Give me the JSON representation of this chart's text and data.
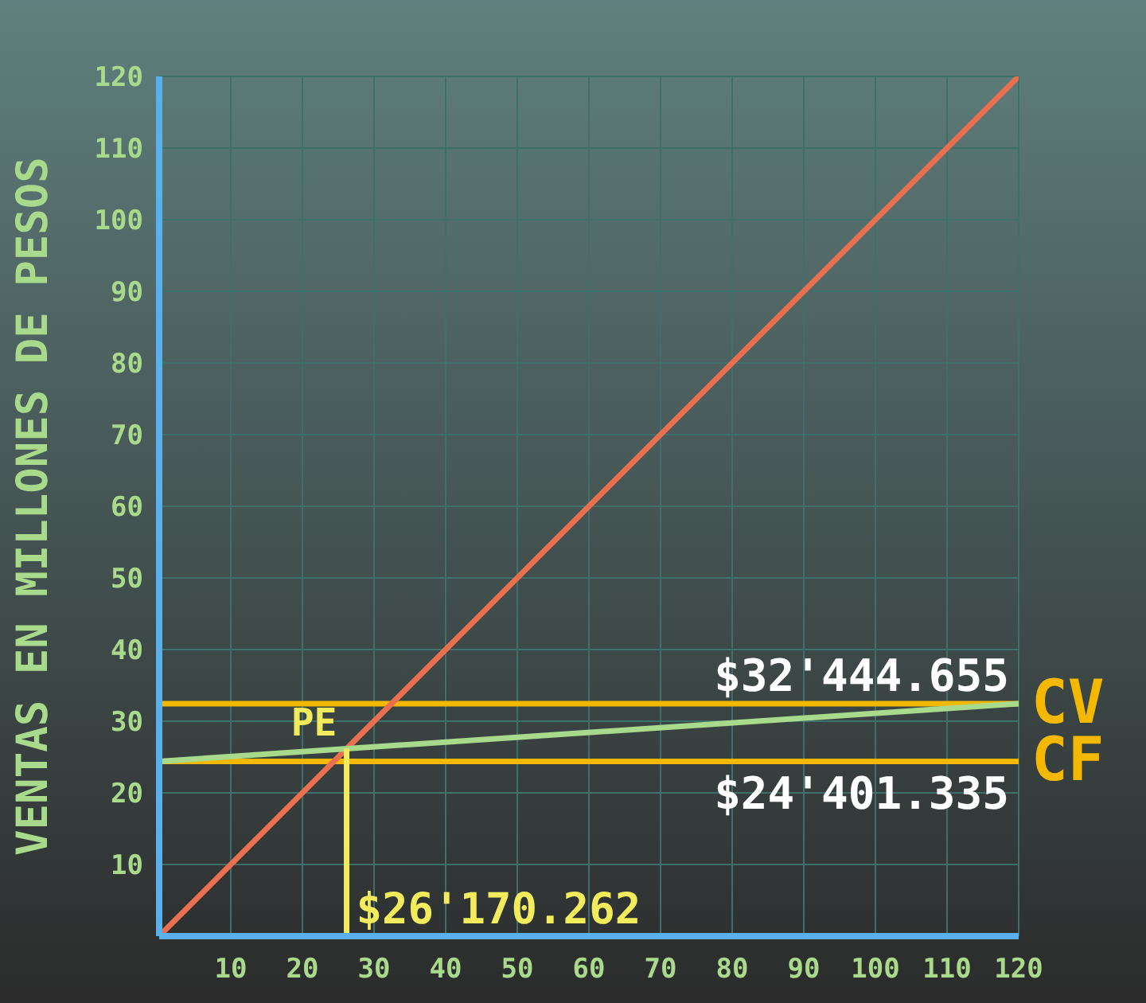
{
  "chart_data": {
    "type": "line",
    "ylabel": "VENTAS EN MILLONES DE PESOS",
    "xlim": [
      0,
      120
    ],
    "xticks": [
      10,
      20,
      30,
      40,
      50,
      60,
      70,
      80,
      90,
      100,
      110,
      120
    ],
    "ylim": [
      0,
      120
    ],
    "yticks": [
      10,
      20,
      30,
      40,
      50,
      60,
      70,
      80,
      90,
      100,
      110,
      120
    ],
    "grid": true,
    "series": [
      {
        "color": "#e8704f",
        "x": [
          0,
          120
        ],
        "values": [
          0,
          120
        ]
      },
      {
        "color": "#a9d98b",
        "x": [
          0,
          120
        ],
        "values": [
          24.401335,
          32.444655
        ]
      },
      {
        "color": "#f2ec5c",
        "x": [
          26.170262,
          26.170262
        ],
        "values": [
          0,
          26.170262
        ]
      }
    ],
    "ref_lines": [
      {
        "axis": "y",
        "value": 32.444655,
        "label": "$32'444.655",
        "color": "#f5b800"
      },
      {
        "axis": "y",
        "value": 24.401335,
        "label": "$24'401.335",
        "color": "#f5b800"
      }
    ],
    "annotations": [
      "CV",
      "CF",
      {
        "text": "PE",
        "x": 26.170262,
        "y": 26.170262
      },
      {
        "text": "$26'170.262",
        "x": 26.170262,
        "y": 0
      }
    ]
  }
}
